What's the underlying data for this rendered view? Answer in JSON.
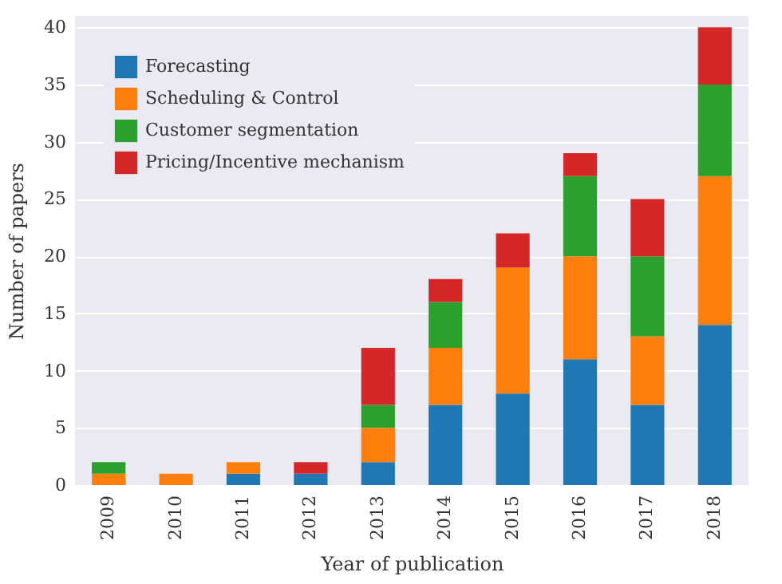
{
  "chart_data": {
    "type": "bar",
    "stacked": true,
    "xlabel": "Year of publication",
    "ylabel": "Number of papers",
    "categories": [
      "2009",
      "2010",
      "2011",
      "2012",
      "2013",
      "2014",
      "2015",
      "2016",
      "2017",
      "2018"
    ],
    "series": [
      {
        "name": "Forecasting",
        "color": "#1f77b4",
        "values": [
          0,
          0,
          1,
          1,
          2,
          7,
          8,
          11,
          7,
          14
        ]
      },
      {
        "name": "Scheduling & Control",
        "color": "#ff7f0e",
        "values": [
          1,
          1,
          1,
          0,
          3,
          5,
          11,
          9,
          6,
          13
        ]
      },
      {
        "name": "Customer segmentation",
        "color": "#2ca02c",
        "values": [
          1,
          0,
          0,
          0,
          2,
          4,
          0,
          7,
          7,
          8
        ]
      },
      {
        "name": "Pricing/Incentive mechanism",
        "color": "#d62728",
        "values": [
          0,
          0,
          0,
          1,
          5,
          2,
          3,
          2,
          5,
          5
        ]
      }
    ],
    "ylim": [
      0,
      41
    ],
    "yticks": [
      0,
      5,
      10,
      15,
      20,
      25,
      30,
      35,
      40
    ],
    "grid": "y",
    "legend": "top left"
  }
}
